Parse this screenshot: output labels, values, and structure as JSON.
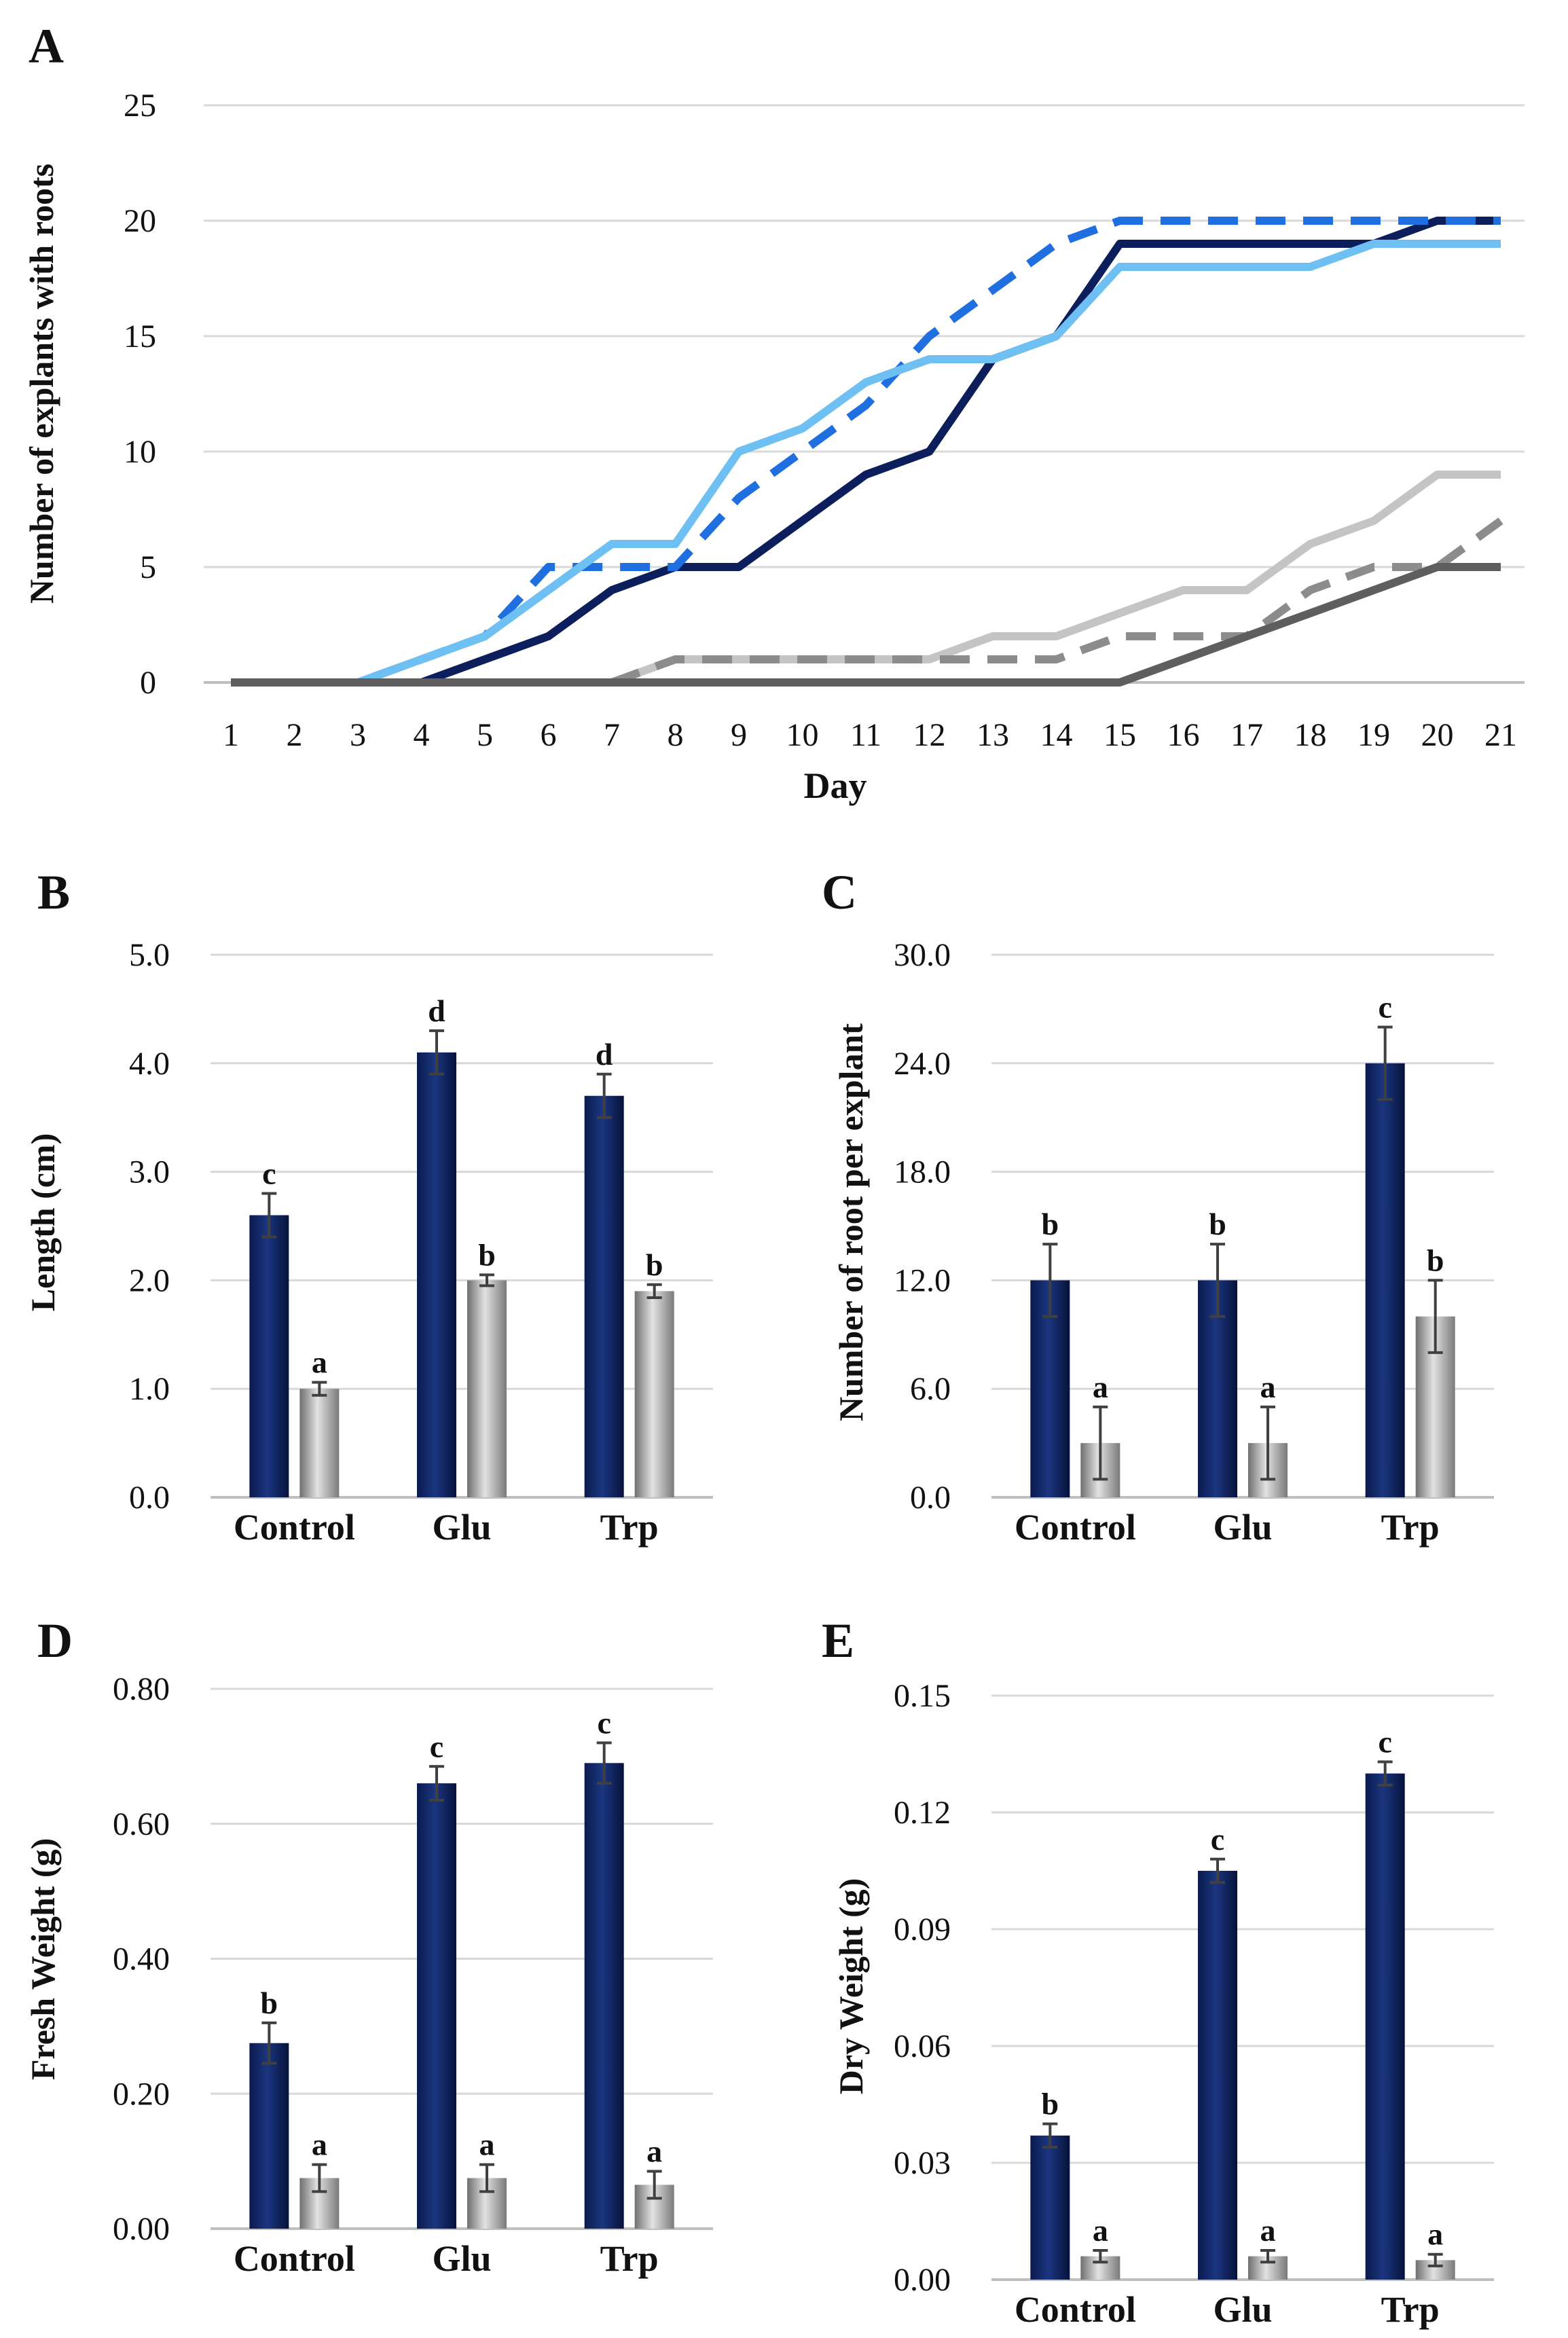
{
  "chart_data": [
    {
      "panel": "A",
      "type": "line",
      "ylabel": "Number of explants with roots",
      "xlabel": "Day",
      "ylim": [
        0,
        25
      ],
      "yticks": [
        "0",
        "5",
        "10",
        "15",
        "20",
        "25"
      ],
      "x": [
        "1",
        "2",
        "3",
        "4",
        "5",
        "6",
        "7",
        "8",
        "9",
        "10",
        "11",
        "12",
        "13",
        "14",
        "15",
        "16",
        "17",
        "18",
        "19",
        "20",
        "21"
      ],
      "series": [
        {
          "name": "dark blue solid",
          "color": "#0c1f5c",
          "dash": false,
          "values": [
            0,
            0,
            0,
            0,
            1,
            2,
            4,
            5,
            5,
            7,
            9,
            10,
            14,
            15,
            19,
            19,
            19,
            19,
            19,
            20,
            20
          ]
        },
        {
          "name": "blue dashed",
          "color": "#1f6fe0",
          "dash": true,
          "values": [
            0,
            0,
            0,
            1,
            2,
            5,
            5,
            5,
            8,
            10,
            12,
            15,
            17,
            19,
            20,
            20,
            20,
            20,
            20,
            20,
            20
          ]
        },
        {
          "name": "light blue solid",
          "color": "#6ec0f2",
          "dash": false,
          "values": [
            0,
            0,
            0,
            1,
            2,
            4,
            6,
            6,
            10,
            11,
            13,
            14,
            14,
            15,
            18,
            18,
            18,
            18,
            19,
            19,
            19
          ]
        },
        {
          "name": "light grey solid",
          "color": "#c4c4c4",
          "dash": false,
          "values": [
            0,
            0,
            0,
            0,
            0,
            0,
            0,
            1,
            1,
            1,
            1,
            1,
            2,
            2,
            3,
            4,
            4,
            6,
            7,
            9,
            9
          ]
        },
        {
          "name": "grey dashed",
          "color": "#8c8c8c",
          "dash": true,
          "values": [
            0,
            0,
            0,
            0,
            0,
            0,
            0,
            1,
            1,
            1,
            1,
            1,
            1,
            1,
            2,
            2,
            2,
            4,
            5,
            5,
            7
          ]
        },
        {
          "name": "dark grey solid",
          "color": "#5e5e5e",
          "dash": false,
          "values": [
            0,
            0,
            0,
            0,
            0,
            0,
            0,
            0,
            0,
            0,
            0,
            0,
            0,
            0,
            0,
            1,
            2,
            3,
            4,
            5,
            5
          ]
        }
      ]
    },
    {
      "panel": "B",
      "type": "bar",
      "ylabel": "Length (cm)",
      "ylim": [
        0,
        5
      ],
      "yticks": [
        "0.0",
        "1.0",
        "2.0",
        "3.0",
        "4.0",
        "5.0"
      ],
      "categories": [
        "Control",
        "Glu",
        "Trp"
      ],
      "series": [
        {
          "name": "dark",
          "values": [
            2.6,
            4.1,
            3.7
          ],
          "errors": [
            0.2,
            0.2,
            0.2
          ],
          "letters": [
            "c",
            "d",
            "d"
          ]
        },
        {
          "name": "grey",
          "values": [
            1.0,
            2.0,
            1.9
          ],
          "errors": [
            0.06,
            0.05,
            0.06
          ],
          "letters": [
            "a",
            "b",
            "b"
          ]
        }
      ]
    },
    {
      "panel": "C",
      "type": "bar",
      "ylabel": "Number of root per explant",
      "ylim": [
        0,
        30
      ],
      "yticks": [
        "0.0",
        "6.0",
        "12.0",
        "18.0",
        "24.0",
        "30.0"
      ],
      "categories": [
        "Control",
        "Glu",
        "Trp"
      ],
      "series": [
        {
          "name": "dark",
          "values": [
            12,
            12,
            24
          ],
          "errors": [
            2,
            2,
            2
          ],
          "letters": [
            "b",
            "b",
            "c"
          ]
        },
        {
          "name": "grey",
          "values": [
            3,
            3,
            10
          ],
          "errors": [
            2,
            2,
            2
          ],
          "letters": [
            "a",
            "a",
            "b"
          ]
        }
      ]
    },
    {
      "panel": "D",
      "type": "bar",
      "ylabel": "Fresh Weight (g)",
      "ylim": [
        0,
        0.8
      ],
      "yticks": [
        "0.00",
        "0.20",
        "0.40",
        "0.60",
        "0.80"
      ],
      "categories": [
        "Control",
        "Glu",
        "Trp"
      ],
      "series": [
        {
          "name": "dark",
          "values": [
            0.275,
            0.66,
            0.69
          ],
          "errors": [
            0.03,
            0.025,
            0.03
          ],
          "letters": [
            "b",
            "c",
            "c"
          ]
        },
        {
          "name": "grey",
          "values": [
            0.075,
            0.075,
            0.065
          ],
          "errors": [
            0.02,
            0.02,
            0.02
          ],
          "letters": [
            "a",
            "a",
            "a"
          ]
        }
      ]
    },
    {
      "panel": "E",
      "type": "bar",
      "ylabel": "Dry Weight (g)",
      "ylim": [
        0,
        0.15
      ],
      "yticks": [
        "0.00",
        "0.03",
        "0.06",
        "0.09",
        "0.12",
        "0.15"
      ],
      "categories": [
        "Control",
        "Glu",
        "Trp"
      ],
      "series": [
        {
          "name": "dark",
          "values": [
            0.037,
            0.105,
            0.13
          ],
          "errors": [
            0.003,
            0.003,
            0.003
          ],
          "letters": [
            "b",
            "c",
            "c"
          ]
        },
        {
          "name": "grey",
          "values": [
            0.006,
            0.006,
            0.005
          ],
          "errors": [
            0.0015,
            0.0015,
            0.0015
          ],
          "letters": [
            "a",
            "a",
            "a"
          ]
        }
      ]
    }
  ]
}
